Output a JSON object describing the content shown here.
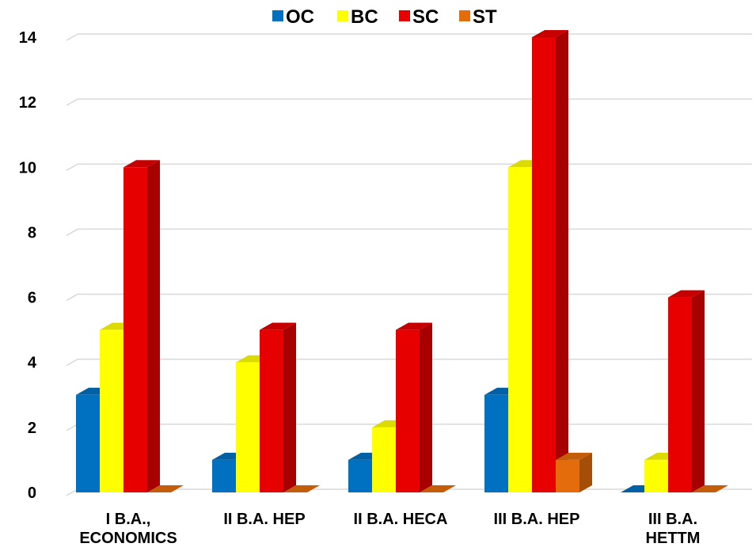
{
  "chart_data": {
    "type": "bar",
    "categories": [
      "I B.A., ECONOMICS",
      "II B.A. HEP",
      "II B.A. HECA",
      "III B.A. HEP",
      "III B.A. HETTM"
    ],
    "category_lines": [
      [
        "I B.A.,",
        "ECONOMICS"
      ],
      [
        "II B.A. HEP"
      ],
      [
        "II B.A. HECA"
      ],
      [
        "III B.A. HEP"
      ],
      [
        "III B.A.",
        "HETTM"
      ]
    ],
    "series": [
      {
        "name": "OC",
        "values": [
          3,
          1,
          1,
          3,
          0
        ],
        "color": "#0070c0"
      },
      {
        "name": "BC",
        "values": [
          5,
          4,
          2,
          10,
          1
        ],
        "color": "#ffff00"
      },
      {
        "name": "SC",
        "values": [
          10,
          5,
          5,
          14,
          6
        ],
        "color": "#e60000"
      },
      {
        "name": "ST",
        "values": [
          0,
          0,
          0,
          1,
          0
        ],
        "color": "#e46c0a"
      }
    ],
    "ylim": [
      0,
      14
    ],
    "yticks": [
      0,
      2,
      4,
      6,
      8,
      10,
      12,
      14
    ],
    "grid": true,
    "legend_position": "top",
    "style": "3d-column"
  }
}
